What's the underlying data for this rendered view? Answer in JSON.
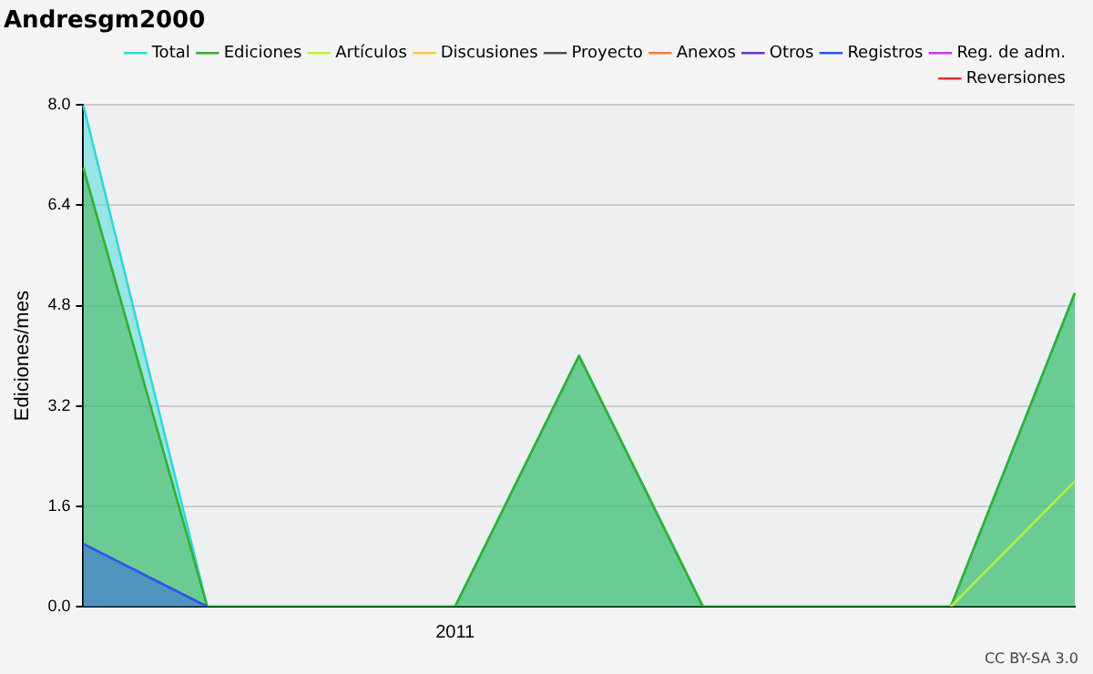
{
  "chart_data": {
    "type": "line",
    "title": "Andresgm2000",
    "ylabel": "Ediciones/mes",
    "categories": [
      null,
      null,
      null,
      "2011",
      null,
      null,
      null,
      null,
      null
    ],
    "series": [
      {
        "name": "Total",
        "type": "area",
        "color": "#30d8d8",
        "values": [
          8,
          0,
          0,
          0,
          4,
          0,
          0,
          0,
          5
        ]
      },
      {
        "name": "Ediciones",
        "type": "area",
        "color": "#30b030",
        "values": [
          7,
          0,
          0,
          0,
          4,
          0,
          0,
          0,
          5
        ]
      },
      {
        "name": "Artículos",
        "type": "line",
        "color": "#b8f040",
        "values": [
          null,
          null,
          null,
          null,
          null,
          null,
          null,
          0,
          2
        ]
      },
      {
        "name": "Discusiones",
        "color": "#f0c850",
        "values": [
          null,
          null,
          null,
          null,
          null,
          null,
          null,
          null,
          null
        ]
      },
      {
        "name": "Proyecto",
        "color": "#505050",
        "values": [
          null,
          null,
          null,
          null,
          null,
          null,
          null,
          null,
          null
        ]
      },
      {
        "name": "Anexos",
        "color": "#f08040",
        "values": [
          null,
          null,
          null,
          null,
          null,
          null,
          null,
          null,
          null
        ]
      },
      {
        "name": "Otros",
        "color": "#7030c8",
        "values": [
          null,
          null,
          null,
          null,
          null,
          null,
          null,
          null,
          null
        ]
      },
      {
        "name": "Registros",
        "type": "area",
        "color": "#3050f0",
        "values": [
          1,
          0,
          null,
          null,
          null,
          null,
          null,
          null,
          null
        ]
      },
      {
        "name": "Reg. de adm.",
        "color": "#c040e0",
        "values": [
          null,
          null,
          null,
          null,
          null,
          null,
          null,
          null,
          null
        ]
      },
      {
        "name": "Reversiones",
        "color": "#e03030",
        "values": [
          null,
          null,
          null,
          null,
          null,
          null,
          null,
          null,
          null
        ]
      }
    ],
    "ylim": [
      0,
      8
    ],
    "yticks": [
      {
        "value": 0,
        "label": "0.0"
      },
      {
        "value": 1.6,
        "label": "1.6"
      },
      {
        "value": 3.2,
        "label": "3.2"
      },
      {
        "value": 4.8,
        "label": "4.8"
      },
      {
        "value": 6.4,
        "label": "6.4"
      },
      {
        "value": 8,
        "label": "8.0"
      }
    ],
    "grid": "y",
    "legend": "top right",
    "marker": "none",
    "annotations": [
      "CC BY-SA 3.0"
    ]
  }
}
